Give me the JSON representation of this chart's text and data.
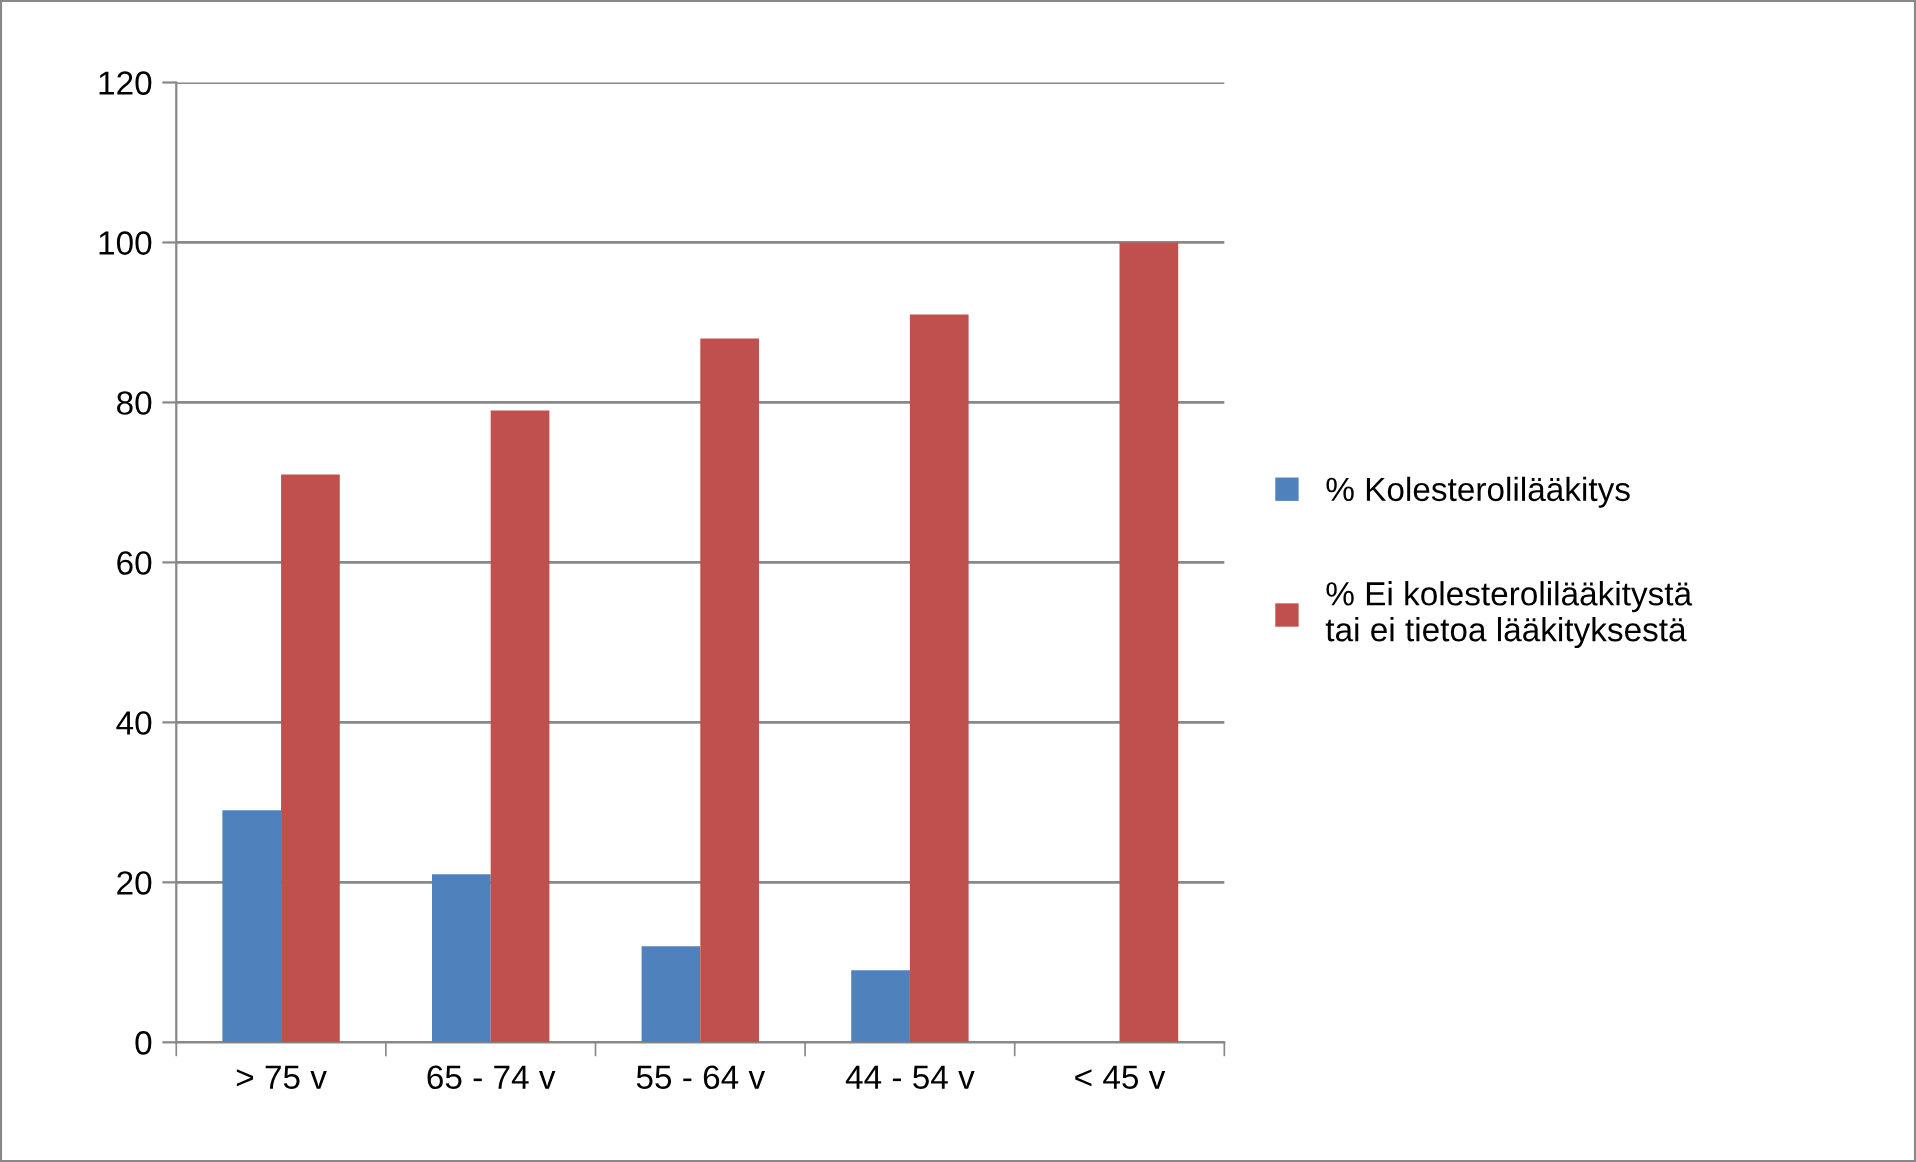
{
  "chart_data": {
    "type": "bar",
    "categories": [
      "> 75 v",
      "65 - 74 v",
      "55 - 64 v",
      "44 - 54 v",
      "< 45 v"
    ],
    "series": [
      {
        "name": "% Kolesterolilääkitys",
        "color": "#4f81bd",
        "values": [
          29,
          21,
          12,
          9,
          0
        ]
      },
      {
        "name": "% Ei kolesterolilääkitystä\ntai ei tietoa lääkityksestä",
        "color": "#c0504d",
        "values": [
          71,
          79,
          88,
          91,
          100
        ]
      }
    ],
    "ylim": [
      0,
      120
    ],
    "yticks": [
      0,
      20,
      40,
      60,
      80,
      100,
      120
    ],
    "grid": "y",
    "legend": "right"
  }
}
